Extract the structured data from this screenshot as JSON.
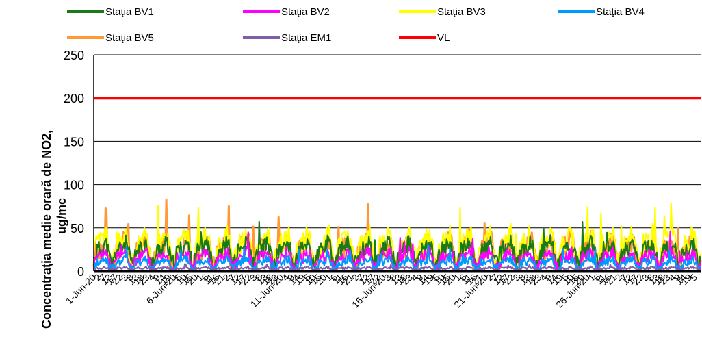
{
  "chart_data": {
    "type": "line",
    "title": "",
    "ylabel_line1": "Concentraţia medie orară de NO2,",
    "ylabel_line2": "ug/mc",
    "xlabel": "",
    "ylim": [
      0,
      250
    ],
    "yticks": [
      "0",
      "50",
      "100",
      "150",
      "200",
      "250"
    ],
    "grid": "horizontal",
    "legend_position": "top",
    "x_tick_labels": [
      "1-Jun-20",
      "2",
      "7",
      "12",
      "17",
      "22",
      "3",
      "8",
      "13",
      "18",
      "23",
      "4",
      "9",
      "14",
      "19",
      "6-Jun-20",
      "5",
      "10",
      "15",
      "20",
      "1",
      "6",
      "11",
      "16",
      "21",
      "2",
      "7",
      "12",
      "17",
      "22",
      "3",
      "8",
      "13",
      "18",
      "23",
      "11-Jun-20",
      "4",
      "9",
      "14",
      "19",
      "5",
      "10",
      "15",
      "20",
      "1",
      "6",
      "11",
      "16",
      "21",
      "2",
      "7",
      "12",
      "17",
      "22",
      "16-Jun-20",
      "3",
      "8",
      "13",
      "18",
      "23",
      "4",
      "9",
      "14",
      "19",
      "5",
      "10",
      "15",
      "20",
      "1",
      "6",
      "11",
      "16",
      "21",
      "21-Jun-20",
      "2",
      "7",
      "12",
      "17",
      "22",
      "3",
      "8",
      "13",
      "18",
      "23",
      "4",
      "9",
      "14",
      "19",
      "5",
      "10",
      "15",
      "20",
      "26-Jun-20",
      "1",
      "6",
      "11",
      "16",
      "21",
      "2",
      "7",
      "12",
      "17",
      "22",
      "3",
      "8",
      "13",
      "18",
      "23",
      "4",
      "9",
      "14",
      "19",
      "5"
    ],
    "series": [
      {
        "name": "Staţia BV1",
        "color": "#1a7a1a",
        "base": 22,
        "amp": 16,
        "seed": 11
      },
      {
        "name": "Staţia BV2",
        "color": "#ff00ff",
        "base": 14,
        "amp": 12,
        "seed": 23
      },
      {
        "name": "Staţia BV3",
        "color": "#ffff00",
        "base": 28,
        "amp": 22,
        "seed": 37
      },
      {
        "name": "Staţia BV4",
        "color": "#0099ff",
        "base": 9,
        "amp": 8,
        "seed": 41
      },
      {
        "name": "Staţia BV5",
        "color": "#ff9933",
        "base": 22,
        "amp": 22,
        "seed": 53
      },
      {
        "name": "Staţia EM1",
        "color": "#7f5fa8",
        "base": 3,
        "amp": 2,
        "seed": 67
      },
      {
        "name": "VL",
        "color": "#ff0000",
        "constant": 200
      }
    ],
    "n_points": 720
  }
}
